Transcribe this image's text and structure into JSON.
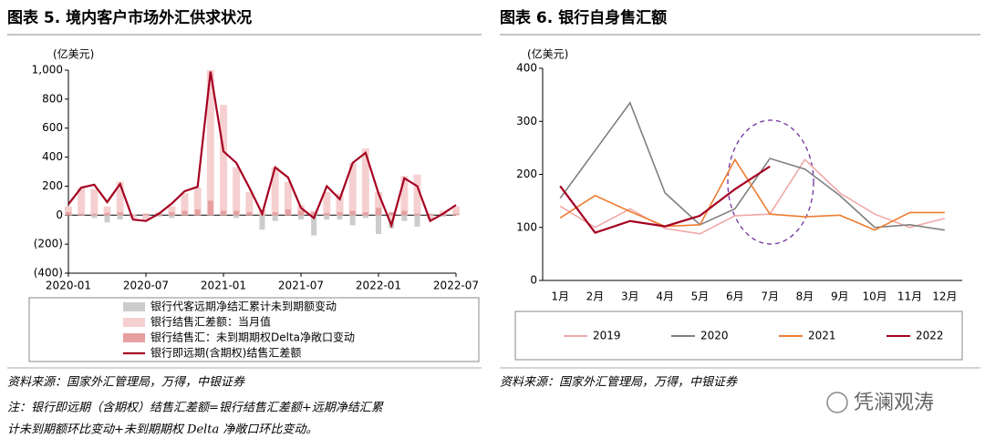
{
  "chart_data": [
    {
      "type": "bar-line",
      "title": "图表 5. 境内客户市场外汇供求状况",
      "y_label": "(亿美元)",
      "categories": [
        "2020-01",
        null,
        null,
        null,
        null,
        null,
        "2020-07",
        null,
        null,
        null,
        null,
        null,
        "2021-01",
        null,
        null,
        null,
        null,
        null,
        "2021-07",
        null,
        null,
        null,
        null,
        null,
        "2022-01",
        null,
        null,
        null,
        null,
        null,
        "2022-07"
      ],
      "ylim": [
        -400,
        1000
      ],
      "yticks": [
        {
          "value": -400,
          "label": "(400)"
        },
        {
          "value": -200,
          "label": "(200)"
        },
        0,
        200,
        400,
        600,
        800,
        {
          "value": 1000,
          "label": "1,000"
        }
      ],
      "grid": false,
      "series": [
        {
          "name": "银行代客远期净结汇累计未到期额变动",
          "kind": "bar",
          "color": "#cccccc",
          "values": [
            10,
            5,
            -20,
            -50,
            -30,
            -10,
            5,
            -10,
            -20,
            15,
            10,
            20,
            40,
            -20,
            40,
            -100,
            -40,
            30,
            -30,
            -140,
            -30,
            -30,
            -70,
            -20,
            -130,
            -90,
            -40,
            -80,
            -30,
            -10,
            20
          ]
        },
        {
          "name": "银行结售汇差额：当月值",
          "kind": "bar",
          "color": "#f6d0d0",
          "values": [
            60,
            190,
            180,
            60,
            230,
            -20,
            -30,
            20,
            60,
            150,
            190,
            1000,
            760,
            330,
            160,
            40,
            330,
            230,
            70,
            30,
            160,
            150,
            360,
            460,
            160,
            -30,
            270,
            280,
            -20,
            30,
            60
          ]
        },
        {
          "name": "银行结售汇：未到期期权Delta净敞口变动",
          "kind": "bar",
          "color": "#e6a0a0",
          "values": [
            20,
            10,
            10,
            15,
            20,
            5,
            10,
            15,
            20,
            30,
            40,
            100,
            30,
            30,
            20,
            10,
            20,
            40,
            30,
            20,
            15,
            20,
            30,
            20,
            50,
            20,
            30,
            10,
            10,
            10,
            10
          ]
        },
        {
          "name": "银行即远期(含期权)结售汇差额",
          "kind": "line",
          "color": "#a50021",
          "values": [
            75,
            190,
            210,
            90,
            215,
            -30,
            -40,
            10,
            80,
            165,
            195,
            990,
            440,
            360,
            190,
            10,
            330,
            260,
            50,
            -20,
            200,
            110,
            360,
            430,
            150,
            -70,
            255,
            200,
            -40,
            10,
            70
          ]
        }
      ]
    },
    {
      "type": "line",
      "title": "图表 6. 银行自身售汇额",
      "y_label": "(亿美元)",
      "categories": [
        "1月",
        "2月",
        "3月",
        "4月",
        "5月",
        "6月",
        "7月",
        "8月",
        "9月",
        "10月",
        "11月",
        "12月"
      ],
      "ylim": [
        0,
        400
      ],
      "yticks": [
        0,
        100,
        200,
        300,
        400
      ],
      "grid": false,
      "series": [
        {
          "name": "2019",
          "color": "#f0a8a8",
          "values": [
            140,
            100,
            135,
            98,
            88,
            122,
            125,
            228,
            165,
            125,
            100,
            117
          ]
        },
        {
          "name": "2020",
          "color": "#808080",
          "values": [
            155,
            245,
            335,
            165,
            105,
            135,
            230,
            210,
            160,
            100,
            105,
            95
          ]
        },
        {
          "name": "2021",
          "color": "#ed7d31",
          "values": [
            118,
            160,
            130,
            102,
            105,
            228,
            125,
            120,
            123,
            95,
            128,
            128
          ]
        },
        {
          "name": "2022",
          "color": "#a50021",
          "values": [
            178,
            90,
            112,
            102,
            122,
            172,
            215,
            null,
            null,
            null,
            null,
            null
          ]
        }
      ]
    }
  ],
  "source": [
    "资料来源：国家外汇管理局，万得，中银证券",
    "资料来源：国家外汇管理局，万得，中银证券"
  ],
  "note": [
    "注：银行即远期（含期权）结售汇差额=银行结售汇差额+远期净结汇累",
    "计未到期额环比变动+未到期期权 Delta 净敞口环比变动。"
  ],
  "watermark": "凭澜观涛"
}
